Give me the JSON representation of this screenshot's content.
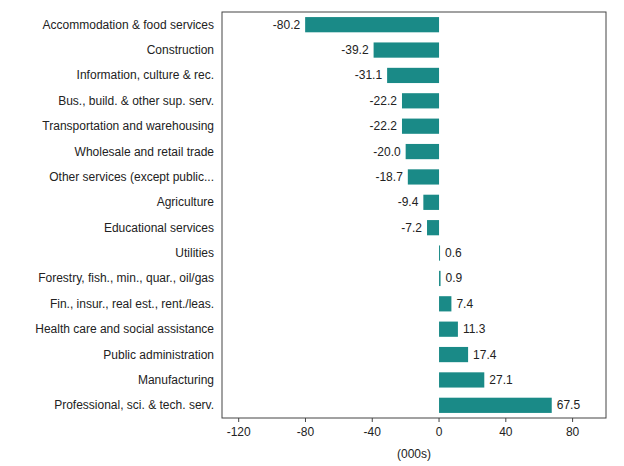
{
  "chart_data": {
    "type": "bar",
    "orientation": "horizontal",
    "categories": [
      "Accommodation & food services",
      "Construction",
      "Information, culture & rec.",
      "Bus., build. & other sup. serv.",
      "Transportation and warehousing",
      "Wholesale and retail trade",
      "Other services (except public...",
      "Agriculture",
      "Educational services",
      "Utilities",
      "Forestry, fish., min., quar., oil/gas",
      "Fin., insur., real est., rent./leas.",
      "Health care and social assistance",
      "Public administration",
      "Manufacturing",
      "Professional, sci. & tech. serv."
    ],
    "values": [
      -80.2,
      -39.2,
      -31.1,
      -22.2,
      -22.2,
      -20.0,
      -18.7,
      -9.4,
      -7.2,
      0.6,
      0.9,
      7.4,
      11.3,
      17.4,
      27.1,
      67.5
    ],
    "value_labels": [
      "-80.2",
      "-39.2",
      "-31.1",
      "-22.2",
      "-22.2",
      "-20.0",
      "-18.7",
      "-9.4",
      "-7.2",
      "0.6",
      "0.9",
      "7.4",
      "11.3",
      "17.4",
      "27.1",
      "67.5"
    ],
    "color": "#1a8a87",
    "xlabel": "(000s)",
    "xlim": [
      -130,
      100
    ],
    "xticks": [
      -120,
      -80,
      -40,
      0,
      40,
      80
    ],
    "data_labels": true,
    "grid": false
  }
}
